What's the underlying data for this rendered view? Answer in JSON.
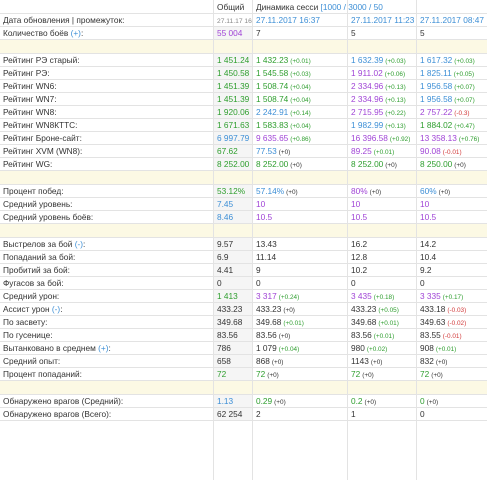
{
  "header": {
    "col_total": "Общий",
    "col_dynamics_label": "Динамика сесси",
    "col_dynamics_range": "[1000 / 3000 / 50"
  },
  "rows": [
    {
      "type": "row",
      "label": "Дата обновления | промежуток:",
      "v1": {
        "t": "27.11.17 16:37",
        "c": "grey",
        "small": true
      },
      "v2": {
        "t": "27.11.2017 16:37",
        "c": "b"
      },
      "v3": {
        "t": "27.11.2017 11:23",
        "c": "b"
      },
      "v4": {
        "t": "27.11.2017 08:47",
        "c": "b"
      }
    },
    {
      "type": "row",
      "label": "Количество боёв",
      "label_link": "(+)",
      "label_suffix": ":",
      "v1": {
        "t": "55 004",
        "c": "p"
      },
      "v2": {
        "t": "7",
        "c": "k"
      },
      "v3": {
        "t": "5",
        "c": "k"
      },
      "v4": {
        "t": "5",
        "c": "k"
      }
    },
    {
      "type": "sep"
    },
    {
      "type": "row",
      "label": "Рейтинг РЭ старый:",
      "v1": {
        "t": "1 451.24",
        "c": "g"
      },
      "v2": {
        "t": "1 432.23",
        "c": "g",
        "d": "(+0.01)",
        "dc": "g"
      },
      "v3": {
        "t": "1 632.39",
        "c": "b",
        "d": "(+0.03)",
        "dc": "g"
      },
      "v4": {
        "t": "1 617.32",
        "c": "b",
        "d": "(+0.03)",
        "dc": "g"
      }
    },
    {
      "type": "row",
      "label": "Рейтинг РЭ:",
      "v1": {
        "t": "1 450.58",
        "c": "g"
      },
      "v2": {
        "t": "1 545.58",
        "c": "g",
        "d": "(+0.03)",
        "dc": "g"
      },
      "v3": {
        "t": "1 911.02",
        "c": "p",
        "d": "(+0.06)",
        "dc": "g"
      },
      "v4": {
        "t": "1 825.11",
        "c": "b",
        "d": "(+0.05)",
        "dc": "g"
      }
    },
    {
      "type": "row",
      "label": "Рейтинг WN6:",
      "v1": {
        "t": "1 451.39",
        "c": "g"
      },
      "v2": {
        "t": "1 508.74",
        "c": "g",
        "d": "(+0.04)",
        "dc": "g"
      },
      "v3": {
        "t": "2 334.96",
        "c": "p",
        "d": "(+0.13)",
        "dc": "g"
      },
      "v4": {
        "t": "1 956.58",
        "c": "b",
        "d": "(+0.07)",
        "dc": "g"
      }
    },
    {
      "type": "row",
      "label": "Рейтинг WN7:",
      "v1": {
        "t": "1 451.39",
        "c": "g"
      },
      "v2": {
        "t": "1 508.74",
        "c": "g",
        "d": "(+0.04)",
        "dc": "g"
      },
      "v3": {
        "t": "2 334.96",
        "c": "p",
        "d": "(+0.13)",
        "dc": "g"
      },
      "v4": {
        "t": "1 956.58",
        "c": "b",
        "d": "(+0.07)",
        "dc": "g"
      }
    },
    {
      "type": "row",
      "label": "Рейтинг WN8:",
      "v1": {
        "t": "1 920.06",
        "c": "g"
      },
      "v2": {
        "t": "2 242.91",
        "c": "b",
        "d": "(+0.14)",
        "dc": "g"
      },
      "v3": {
        "t": "2 715.95",
        "c": "p",
        "d": "(+0.22)",
        "dc": "g"
      },
      "v4": {
        "t": "2 757.22",
        "c": "p",
        "d": "(-0.3)",
        "dc": "r"
      }
    },
    {
      "type": "row",
      "label": "Рейтинг WN8КТТС:",
      "v1": {
        "t": "1 671.63",
        "c": "g"
      },
      "v2": {
        "t": "1 583.83",
        "c": "g",
        "d": "(+0.04)",
        "dc": "g"
      },
      "v3": {
        "t": "1 982.99",
        "c": "b",
        "d": "(+0.13)",
        "dc": "g"
      },
      "v4": {
        "t": "1 884.02",
        "c": "g",
        "d": "(+0.47)",
        "dc": "g"
      }
    },
    {
      "type": "row",
      "label": "Рейтинг Броне-сайт:",
      "v1": {
        "t": "6 997.79",
        "c": "b"
      },
      "v2": {
        "t": "9 635.65",
        "c": "p",
        "d": "(+0.86)",
        "dc": "g"
      },
      "v3": {
        "t": "16 396.58",
        "c": "p",
        "d": "(+0.92)",
        "dc": "g"
      },
      "v4": {
        "t": "13 358.13",
        "c": "p",
        "d": "(+0.76)",
        "dc": "g"
      }
    },
    {
      "type": "row",
      "label": "Рейтинг XVM (WN8):",
      "v1": {
        "t": "67.62",
        "c": "g"
      },
      "v2": {
        "t": "77.53",
        "c": "b",
        "d": "(+0)",
        "dc": "k"
      },
      "v3": {
        "t": "89.25",
        "c": "p",
        "d": "(+0.01)",
        "dc": "g"
      },
      "v4": {
        "t": "90.08",
        "c": "p",
        "d": "(-0.01)",
        "dc": "r"
      }
    },
    {
      "type": "row",
      "label": "Рейтинг WG:",
      "v1": {
        "t": "8 252.00",
        "c": "g"
      },
      "v2": {
        "t": "8 252.00",
        "c": "g",
        "d": "(+0)",
        "dc": "k"
      },
      "v3": {
        "t": "8 252.00",
        "c": "g",
        "d": "(+0)",
        "dc": "k"
      },
      "v4": {
        "t": "8 250.00",
        "c": "g",
        "d": "(+0)",
        "dc": "k"
      }
    },
    {
      "type": "sep"
    },
    {
      "type": "row",
      "label": "Процент побед:",
      "v1": {
        "t": "53.12%",
        "c": "g"
      },
      "v2": {
        "t": "57.14%",
        "c": "b",
        "d": "(+0)",
        "dc": "k"
      },
      "v3": {
        "t": "80%",
        "c": "p",
        "d": "(+0)",
        "dc": "k"
      },
      "v4": {
        "t": "60%",
        "c": "b",
        "d": "(+0)",
        "dc": "k"
      }
    },
    {
      "type": "row",
      "label": "Средний уровень:",
      "v1": {
        "t": "7.45",
        "c": "b"
      },
      "v2": {
        "t": "10",
        "c": "p"
      },
      "v3": {
        "t": "10",
        "c": "p"
      },
      "v4": {
        "t": "10",
        "c": "p"
      }
    },
    {
      "type": "row",
      "label": "Средний уровень боёв:",
      "v1": {
        "t": "8.46",
        "c": "b"
      },
      "v2": {
        "t": "10.5",
        "c": "p"
      },
      "v3": {
        "t": "10.5",
        "c": "p"
      },
      "v4": {
        "t": "10.5",
        "c": "p"
      }
    },
    {
      "type": "sep"
    },
    {
      "type": "row",
      "label": "Выстрелов за бой",
      "label_link": "(-)",
      "label_suffix": ":",
      "v1": {
        "t": "9.57",
        "c": "k"
      },
      "v2": {
        "t": "13.43",
        "c": "k"
      },
      "v3": {
        "t": "16.2",
        "c": "k"
      },
      "v4": {
        "t": "14.2",
        "c": "k"
      }
    },
    {
      "type": "row",
      "label": "Попаданий за бой:",
      "v1": {
        "t": "6.9",
        "c": "k"
      },
      "v2": {
        "t": "11.14",
        "c": "k"
      },
      "v3": {
        "t": "12.8",
        "c": "k"
      },
      "v4": {
        "t": "10.4",
        "c": "k"
      }
    },
    {
      "type": "row",
      "label": "Пробитий за бой:",
      "v1": {
        "t": "4.41",
        "c": "k"
      },
      "v2": {
        "t": "9",
        "c": "k"
      },
      "v3": {
        "t": "10.2",
        "c": "k"
      },
      "v4": {
        "t": "9.2",
        "c": "k"
      }
    },
    {
      "type": "row",
      "label": "Фугасов за бой:",
      "v1": {
        "t": "0",
        "c": "k"
      },
      "v2": {
        "t": "0",
        "c": "k"
      },
      "v3": {
        "t": "0",
        "c": "k"
      },
      "v4": {
        "t": "0",
        "c": "k"
      }
    },
    {
      "type": "row",
      "label": "Средний урон:",
      "v1": {
        "t": "1 413",
        "c": "g"
      },
      "v2": {
        "t": "3 317",
        "c": "p",
        "d": "(+0.24)",
        "dc": "g"
      },
      "v3": {
        "t": "3 435",
        "c": "p",
        "d": "(+0.18)",
        "dc": "g"
      },
      "v4": {
        "t": "3 335",
        "c": "p",
        "d": "(+0.17)",
        "dc": "g"
      }
    },
    {
      "type": "row",
      "label": "Ассист урон",
      "label_link": "(-)",
      "label_suffix": ":",
      "v1": {
        "t": "433.23",
        "c": "k"
      },
      "v2": {
        "t": "433.23",
        "c": "k",
        "d": "(+0)",
        "dc": "k"
      },
      "v3": {
        "t": "433.23",
        "c": "k",
        "d": "(+0.05)",
        "dc": "g"
      },
      "v4": {
        "t": "433.18",
        "c": "k",
        "d": "(-0.03)",
        "dc": "r"
      }
    },
    {
      "type": "row",
      "label": "По засвету:",
      "v1": {
        "t": "349.68",
        "c": "k"
      },
      "v2": {
        "t": "349.68",
        "c": "k",
        "d": "(+0.01)",
        "dc": "g"
      },
      "v3": {
        "t": "349.68",
        "c": "k",
        "d": "(+0.01)",
        "dc": "g"
      },
      "v4": {
        "t": "349.63",
        "c": "k",
        "d": "(-0.02)",
        "dc": "r"
      }
    },
    {
      "type": "row",
      "label": "По гусенице:",
      "v1": {
        "t": "83.56",
        "c": "k"
      },
      "v2": {
        "t": "83.56",
        "c": "k",
        "d": "(+0)",
        "dc": "k"
      },
      "v3": {
        "t": "83.56",
        "c": "k",
        "d": "(+0.01)",
        "dc": "g"
      },
      "v4": {
        "t": "83.55",
        "c": "k",
        "d": "(-0.01)",
        "dc": "r"
      }
    },
    {
      "type": "row",
      "label": "Вытанковано в среднем",
      "label_link": "(+)",
      "label_suffix": ":",
      "v1": {
        "t": "786",
        "c": "k"
      },
      "v2": {
        "t": "1 079",
        "c": "k",
        "d": "(+0.04)",
        "dc": "g"
      },
      "v3": {
        "t": "980",
        "c": "k",
        "d": "(+0.02)",
        "dc": "g"
      },
      "v4": {
        "t": "908",
        "c": "k",
        "d": "(+0.01)",
        "dc": "g"
      }
    },
    {
      "type": "row",
      "label": "Средний опыт:",
      "v1": {
        "t": "658",
        "c": "k"
      },
      "v2": {
        "t": "868",
        "c": "k",
        "d": "(+0)",
        "dc": "k"
      },
      "v3": {
        "t": "1143",
        "c": "k",
        "d": "(+0)",
        "dc": "k"
      },
      "v4": {
        "t": "832",
        "c": "k",
        "d": "(+0)",
        "dc": "k"
      }
    },
    {
      "type": "row",
      "label": "Процент попаданий:",
      "v1": {
        "t": "72",
        "c": "g"
      },
      "v2": {
        "t": "72",
        "c": "g",
        "d": "(+0)",
        "dc": "k"
      },
      "v3": {
        "t": "72",
        "c": "g",
        "d": "(+0)",
        "dc": "k"
      },
      "v4": {
        "t": "72",
        "c": "g",
        "d": "(+0)",
        "dc": "k"
      }
    },
    {
      "type": "sep"
    },
    {
      "type": "row",
      "label": "Обнаружено врагов (Средний):",
      "v1": {
        "t": "1.13",
        "c": "b"
      },
      "v2": {
        "t": "0.29",
        "c": "g",
        "d": "(+0)",
        "dc": "k"
      },
      "v3": {
        "t": "0.2",
        "c": "g",
        "d": "(+0)",
        "dc": "k"
      },
      "v4": {
        "t": "0",
        "c": "g",
        "d": "(+0)",
        "dc": "k"
      }
    },
    {
      "type": "row",
      "label": "Обнаружено врагов (Всего):",
      "v1": {
        "t": "62 254",
        "c": "k"
      },
      "v2": {
        "t": "2",
        "c": "k"
      },
      "v3": {
        "t": "1",
        "c": "k"
      },
      "v4": {
        "t": "0",
        "c": "k"
      }
    }
  ]
}
